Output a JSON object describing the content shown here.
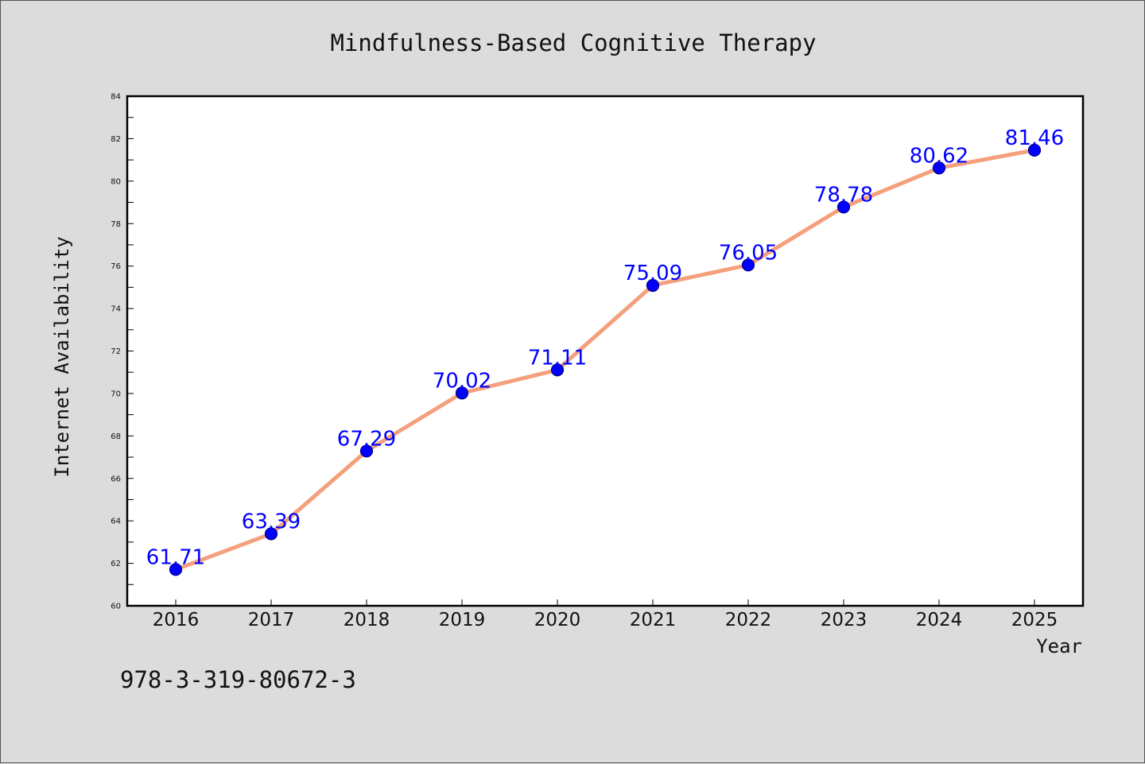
{
  "chart_data": {
    "type": "line",
    "title": "Mindfulness-Based Cognitive Therapy",
    "xlabel": "Year",
    "ylabel": "Internet Availability",
    "categories": [
      "2016",
      "2017",
      "2018",
      "2019",
      "2020",
      "2021",
      "2022",
      "2023",
      "2024",
      "2025"
    ],
    "values": [
      61.71,
      63.39,
      67.29,
      70.02,
      71.11,
      75.09,
      76.05,
      78.78,
      80.62,
      81.46
    ],
    "data_labels": [
      "61.71",
      "63.39",
      "67.29",
      "70.02",
      "71.11",
      "75.09",
      "76.05",
      "78.78",
      "80.62",
      "81.46"
    ],
    "ylim": [
      60,
      84
    ],
    "yticks": [
      "60",
      "62",
      "64",
      "66",
      "68",
      "70",
      "72",
      "74",
      "76",
      "78",
      "80",
      "82",
      "84"
    ],
    "grid": false,
    "legend": "none",
    "colors": {
      "line": "#f4a07c",
      "marker": "#0000ff",
      "marker_edge": "#00008b",
      "label": "#0000ff"
    }
  },
  "footer": {
    "code": "978-3-319-80672-3"
  }
}
